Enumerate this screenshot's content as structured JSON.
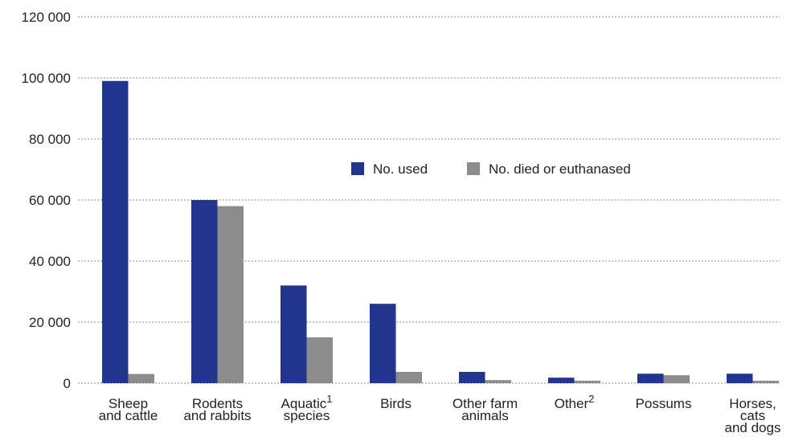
{
  "chart_data": {
    "type": "bar",
    "categories": [
      [
        "Sheep",
        "and cattle"
      ],
      [
        "Rodents",
        "and rabbits"
      ],
      [
        "Aquatic",
        "species"
      ],
      [
        "Birds"
      ],
      [
        "Other farm",
        "animals"
      ],
      [
        "Other"
      ],
      [
        "Possums"
      ],
      [
        "Horses,",
        "cats",
        "and dogs"
      ]
    ],
    "category_notes": [
      null,
      null,
      "1",
      null,
      null,
      "2",
      null,
      null
    ],
    "series": [
      {
        "name": "No. used",
        "color": "#22358c",
        "values": [
          99000,
          60000,
          32000,
          26000,
          3700,
          1800,
          3100,
          3100
        ]
      },
      {
        "name": "No. died or euthanased",
        "color": "#8c8c8c",
        "values": [
          3000,
          58000,
          15000,
          3700,
          1000,
          800,
          2600,
          800
        ]
      }
    ],
    "ylim": [
      0,
      120000
    ],
    "yticks": [
      0,
      {
        "value": 20000,
        "label": "20 000"
      },
      {
        "value": 40000,
        "label": "40 000"
      },
      {
        "value": 60000,
        "label": "60 000"
      },
      {
        "value": 80000,
        "label": "80 000"
      },
      {
        "value": 100000,
        "label": "100 000"
      },
      {
        "value": 120000,
        "label": "120 000"
      }
    ],
    "grid": true
  }
}
